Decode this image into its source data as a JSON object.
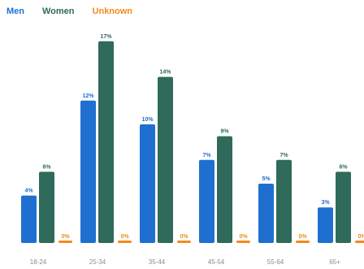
{
  "legend": {
    "men": "Men",
    "women": "Women",
    "unknown": "Unknown"
  },
  "colors": {
    "men": "#1f6fd1",
    "women": "#2f6a5a",
    "unknown": "#f28a1d",
    "tick": "#8b8b8b"
  },
  "chart_data": {
    "type": "bar",
    "categories": [
      "18-24",
      "25-34",
      "35-44",
      "45-54",
      "55-64",
      "65+"
    ],
    "series": [
      {
        "name": "Men",
        "values": [
          4,
          12,
          10,
          7,
          5,
          3
        ],
        "labels": [
          "4%",
          "12%",
          "10%",
          "7%",
          "5%",
          "3%"
        ]
      },
      {
        "name": "Women",
        "values": [
          6,
          17,
          14,
          9,
          7,
          6
        ],
        "labels": [
          "6%",
          "17%",
          "14%",
          "9%",
          "7%",
          "6%"
        ]
      },
      {
        "name": "Unknown",
        "values": [
          0,
          0,
          0,
          0,
          0,
          0
        ],
        "labels": [
          "0%",
          "0%",
          "0%",
          "0%",
          "0%",
          "0%"
        ]
      }
    ],
    "title": "",
    "xlabel": "",
    "ylabel": "",
    "ylim": [
      0,
      17
    ],
    "grid": false,
    "legend_position": "top-left"
  }
}
